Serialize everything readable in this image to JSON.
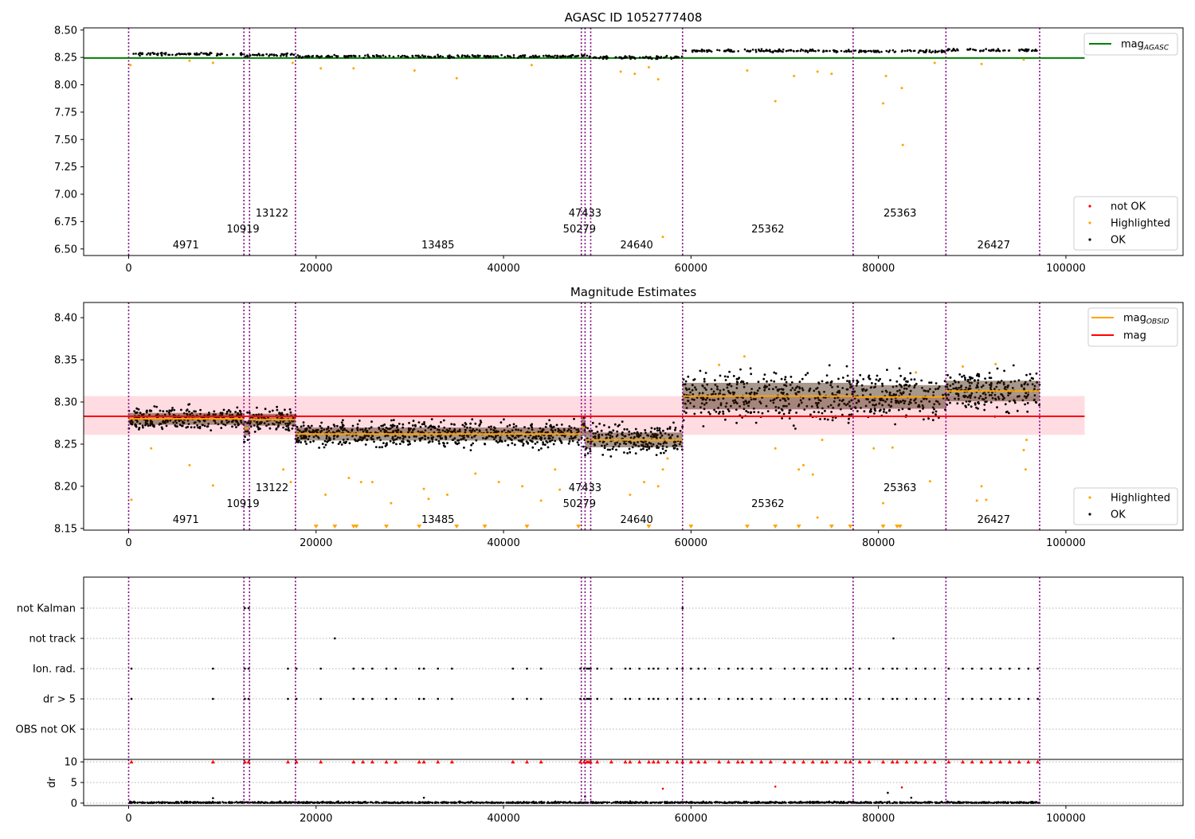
{
  "chart_data": [
    {
      "type": "scatter",
      "title": "AGASC ID 1052777408",
      "xlim": [
        -4800,
        112500
      ],
      "ylim": [
        6.44,
        8.52
      ],
      "x_ticks": [
        0,
        20000,
        40000,
        60000,
        80000,
        100000
      ],
      "y_ticks": [
        6.5,
        6.75,
        7.0,
        7.25,
        7.5,
        7.75,
        8.0,
        8.25,
        8.5
      ],
      "y_tick_labels": [
        "6.50",
        "6.75",
        "7.00",
        "7.25",
        "7.50",
        "7.75",
        "8.00",
        "8.25",
        "8.50"
      ],
      "grid": false,
      "legend_top": {
        "position": "top-right",
        "entries": [
          {
            "label": "mag",
            "sub": "AGASC",
            "color": "#008000",
            "kind": "line"
          }
        ]
      },
      "legend_bottom": {
        "position": "bottom-right",
        "entries": [
          {
            "label": "not OK",
            "color": "#ff0000",
            "kind": "dot"
          },
          {
            "label": "Highlighted",
            "color": "#ffa500",
            "kind": "dot"
          },
          {
            "label": "OK",
            "color": "#000000",
            "kind": "dot"
          }
        ]
      },
      "reference_line": {
        "y": 8.245,
        "x_from": -4800,
        "x_to": 102000,
        "color": "#008000"
      },
      "segments": [
        {
          "x_from": 0,
          "x_to": 12300,
          "mag": 8.28
        },
        {
          "x_from": 12300,
          "x_to": 12900,
          "mag": 8.27
        },
        {
          "x_from": 12900,
          "x_to": 17800,
          "mag": 8.275
        },
        {
          "x_from": 17800,
          "x_to": 48300,
          "mag": 8.26
        },
        {
          "x_from": 48300,
          "x_to": 48700,
          "mag": 8.265
        },
        {
          "x_from": 48700,
          "x_to": 49300,
          "mag": 8.255
        },
        {
          "x_from": 49300,
          "x_to": 59100,
          "mag": 8.25
        },
        {
          "x_from": 59100,
          "x_to": 77300,
          "mag": 8.31
        },
        {
          "x_from": 77300,
          "x_to": 87200,
          "mag": 8.305
        },
        {
          "x_from": 87200,
          "x_to": 97200,
          "mag": 8.315
        }
      ],
      "highlighted_points": [
        {
          "x": 200,
          "y": 8.18
        },
        {
          "x": 6500,
          "y": 8.22
        },
        {
          "x": 9000,
          "y": 8.2
        },
        {
          "x": 17500,
          "y": 8.2
        },
        {
          "x": 20500,
          "y": 8.15
        },
        {
          "x": 24000,
          "y": 8.15
        },
        {
          "x": 30500,
          "y": 8.13
        },
        {
          "x": 35000,
          "y": 8.06
        },
        {
          "x": 43000,
          "y": 8.18
        },
        {
          "x": 52500,
          "y": 8.12
        },
        {
          "x": 54000,
          "y": 8.1
        },
        {
          "x": 55500,
          "y": 8.16
        },
        {
          "x": 56500,
          "y": 8.05
        },
        {
          "x": 57000,
          "y": 6.61
        },
        {
          "x": 66000,
          "y": 8.13
        },
        {
          "x": 69000,
          "y": 7.85
        },
        {
          "x": 71000,
          "y": 8.08
        },
        {
          "x": 73500,
          "y": 8.12
        },
        {
          "x": 75000,
          "y": 8.1
        },
        {
          "x": 80500,
          "y": 7.83
        },
        {
          "x": 80800,
          "y": 8.08
        },
        {
          "x": 82500,
          "y": 7.97
        },
        {
          "x": 82600,
          "y": 7.45
        },
        {
          "x": 86000,
          "y": 8.2
        },
        {
          "x": 91000,
          "y": 8.19
        },
        {
          "x": 95500,
          "y": 8.23
        }
      ],
      "obsid_boundaries": [
        0,
        12300,
        12900,
        17800,
        48300,
        48700,
        49300,
        59100,
        77300,
        87200,
        97200
      ],
      "obsid_labels": [
        {
          "text": "4971",
          "x": 6100,
          "row": 3
        },
        {
          "text": "10919",
          "x": 12200,
          "row": 2
        },
        {
          "text": "13122",
          "x": 15300,
          "row": 1
        },
        {
          "text": "13485",
          "x": 33000,
          "row": 3
        },
        {
          "text": "47433",
          "x": 48700,
          "row": 1
        },
        {
          "text": "50279",
          "x": 48100,
          "row": 2
        },
        {
          "text": "24640",
          "x": 54200,
          "row": 3
        },
        {
          "text": "25362",
          "x": 68200,
          "row": 2
        },
        {
          "text": "25363",
          "x": 82300,
          "row": 1
        },
        {
          "text": "26427",
          "x": 92300,
          "row": 3
        }
      ]
    },
    {
      "type": "scatter",
      "title": "Magnitude Estimates",
      "xlim": [
        -4800,
        112500
      ],
      "ylim": [
        8.148,
        8.418
      ],
      "x_ticks": [
        0,
        20000,
        40000,
        60000,
        80000,
        100000
      ],
      "y_ticks": [
        8.15,
        8.2,
        8.25,
        8.3,
        8.35,
        8.4
      ],
      "y_tick_labels": [
        "8.15",
        "8.20",
        "8.25",
        "8.30",
        "8.35",
        "8.40"
      ],
      "grid": false,
      "legend_top": {
        "position": "top-right",
        "entries": [
          {
            "label": "mag",
            "sub": "OBSID",
            "color": "#ffa500",
            "kind": "line"
          },
          {
            "label": "mag",
            "sub": "",
            "color": "#ff0000",
            "kind": "line"
          }
        ]
      },
      "legend_bottom": {
        "position": "bottom-right",
        "entries": [
          {
            "label": "Highlighted",
            "color": "#ffa500",
            "kind": "dot"
          },
          {
            "label": "OK",
            "color": "#000000",
            "kind": "dot"
          }
        ]
      },
      "mean_mag": 8.283,
      "mean_band": [
        8.261,
        8.307
      ],
      "segments": [
        {
          "x_from": 0,
          "x_to": 12300,
          "mag": 8.28,
          "spread": 0.02
        },
        {
          "x_from": 12300,
          "x_to": 12900,
          "mag": 8.269,
          "spread": 0.025
        },
        {
          "x_from": 12900,
          "x_to": 17800,
          "mag": 8.279,
          "spread": 0.02
        },
        {
          "x_from": 17800,
          "x_to": 48300,
          "mag": 8.262,
          "spread": 0.022
        },
        {
          "x_from": 48300,
          "x_to": 48700,
          "mag": 8.27,
          "spread": 0.03
        },
        {
          "x_from": 48700,
          "x_to": 49300,
          "mag": 8.255,
          "spread": 0.03
        },
        {
          "x_from": 49300,
          "x_to": 59100,
          "mag": 8.255,
          "spread": 0.025
        },
        {
          "x_from": 59100,
          "x_to": 77300,
          "mag": 8.307,
          "spread": 0.045
        },
        {
          "x_from": 77300,
          "x_to": 87200,
          "mag": 8.306,
          "spread": 0.04
        },
        {
          "x_from": 87200,
          "x_to": 97200,
          "mag": 8.313,
          "spread": 0.035
        }
      ],
      "highlighted_points": [
        {
          "x": 300,
          "y": 8.184
        },
        {
          "x": 2400,
          "y": 8.245
        },
        {
          "x": 6500,
          "y": 8.225
        },
        {
          "x": 9000,
          "y": 8.201
        },
        {
          "x": 16500,
          "y": 8.22
        },
        {
          "x": 17300,
          "y": 8.205
        },
        {
          "x": 21000,
          "y": 8.19
        },
        {
          "x": 23500,
          "y": 8.21
        },
        {
          "x": 24800,
          "y": 8.205
        },
        {
          "x": 26000,
          "y": 8.205
        },
        {
          "x": 28000,
          "y": 8.18
        },
        {
          "x": 31500,
          "y": 8.197
        },
        {
          "x": 32000,
          "y": 8.185
        },
        {
          "x": 34000,
          "y": 8.19
        },
        {
          "x": 37000,
          "y": 8.215
        },
        {
          "x": 39500,
          "y": 8.205
        },
        {
          "x": 42000,
          "y": 8.2
        },
        {
          "x": 44000,
          "y": 8.183
        },
        {
          "x": 45500,
          "y": 8.22
        },
        {
          "x": 46000,
          "y": 8.196
        },
        {
          "x": 53500,
          "y": 8.19
        },
        {
          "x": 55000,
          "y": 8.205
        },
        {
          "x": 56500,
          "y": 8.2
        },
        {
          "x": 57000,
          "y": 8.22
        },
        {
          "x": 57500,
          "y": 8.233
        },
        {
          "x": 63000,
          "y": 8.344
        },
        {
          "x": 65700,
          "y": 8.354
        },
        {
          "x": 69000,
          "y": 8.245
        },
        {
          "x": 71500,
          "y": 8.22
        },
        {
          "x": 72000,
          "y": 8.225
        },
        {
          "x": 73000,
          "y": 8.214
        },
        {
          "x": 73500,
          "y": 8.163
        },
        {
          "x": 74000,
          "y": 8.255
        },
        {
          "x": 79500,
          "y": 8.245
        },
        {
          "x": 80500,
          "y": 8.18
        },
        {
          "x": 81500,
          "y": 8.246
        },
        {
          "x": 84000,
          "y": 8.335
        },
        {
          "x": 85500,
          "y": 8.206
        },
        {
          "x": 89000,
          "y": 8.342
        },
        {
          "x": 90500,
          "y": 8.183
        },
        {
          "x": 91000,
          "y": 8.2
        },
        {
          "x": 91500,
          "y": 8.184
        },
        {
          "x": 92500,
          "y": 8.345
        },
        {
          "x": 95500,
          "y": 8.243
        },
        {
          "x": 95700,
          "y": 8.22
        },
        {
          "x": 95800,
          "y": 8.255
        }
      ],
      "clipped_markers": [
        20000,
        22000,
        24000,
        24300,
        27500,
        31000,
        35000,
        38000,
        42500,
        48000,
        55500,
        60000,
        66000,
        69000,
        71500,
        75000,
        77000,
        80500,
        82000,
        82300
      ],
      "obsid_boundaries": [
        0,
        12300,
        12900,
        17800,
        48300,
        48700,
        49300,
        59100,
        77300,
        87200,
        97200
      ],
      "obsid_labels": [
        {
          "text": "4971",
          "x": 6100,
          "row": 3
        },
        {
          "text": "10919",
          "x": 12200,
          "row": 2
        },
        {
          "text": "13122",
          "x": 15300,
          "row": 1
        },
        {
          "text": "13485",
          "x": 33000,
          "row": 3
        },
        {
          "text": "47433",
          "x": 48700,
          "row": 1
        },
        {
          "text": "50279",
          "x": 48100,
          "row": 2
        },
        {
          "text": "24640",
          "x": 54200,
          "row": 3
        },
        {
          "text": "25362",
          "x": 68200,
          "row": 2
        },
        {
          "text": "25363",
          "x": 82300,
          "row": 1
        },
        {
          "text": "26427",
          "x": 92300,
          "row": 3
        }
      ]
    },
    {
      "type": "scatter",
      "title": "",
      "xlim": [
        -4800,
        112500
      ],
      "categories": [
        "not Kalman",
        "not track",
        "Ion. rad.",
        "dr > 5",
        "OBS not OK"
      ],
      "grid": "dotted horizontal",
      "flags": {
        "not Kalman": [
          12400,
          12800,
          59100
        ],
        "not track": [
          22000,
          81600
        ],
        "Ion. rad.": [
          300,
          9000,
          12400,
          12800,
          17000,
          17900,
          20500,
          24000,
          25000,
          26000,
          27500,
          28500,
          31000,
          31500,
          33000,
          34500,
          41000,
          42500,
          44000,
          48200,
          48600,
          48900,
          49100,
          49300,
          50000,
          51500,
          53000,
          53500,
          54500,
          55500,
          56000,
          56500,
          57500,
          58500,
          59100,
          60000,
          60800,
          61500,
          63000,
          64000,
          65000,
          65500,
          66500,
          67500,
          68500,
          70000,
          71000,
          72000,
          73000,
          74000,
          74500,
          75500,
          76500,
          77000,
          78000,
          79000,
          80500,
          81500,
          82000,
          83000,
          84000,
          85000,
          86000,
          87500,
          89000,
          90000,
          91000,
          92000,
          93000,
          94000,
          95000,
          96000,
          97000
        ],
        "dr > 5": [
          300,
          9000,
          12400,
          12800,
          17000,
          17900,
          20500,
          24000,
          25000,
          26000,
          27500,
          28500,
          31000,
          31500,
          33000,
          34500,
          41000,
          42500,
          44000,
          48200,
          48600,
          48900,
          49100,
          49300,
          50000,
          51500,
          53000,
          53500,
          54500,
          55500,
          56000,
          56500,
          57500,
          58500,
          59100,
          60000,
          60800,
          61500,
          63000,
          64000,
          65000,
          65500,
          66500,
          67500,
          68500,
          70000,
          71000,
          72000,
          73000,
          74000,
          74500,
          75500,
          76500,
          77000,
          78000,
          79000,
          80500,
          81500,
          82000,
          83000,
          84000,
          85000,
          86000,
          87500,
          89000,
          90000,
          91000,
          92000,
          93000,
          94000,
          95000,
          96000,
          97000
        ],
        "OBS not OK": []
      },
      "obsid_boundaries": [
        0,
        12300,
        12900,
        17800,
        48300,
        48700,
        49300,
        59100,
        77300,
        87200,
        97200
      ]
    },
    {
      "type": "scatter",
      "title": "",
      "ylabel": "dr",
      "xlim": [
        -4800,
        112500
      ],
      "ylim": [
        -0.6,
        10.6
      ],
      "x_ticks": [
        0,
        20000,
        40000,
        60000,
        80000,
        100000
      ],
      "y_ticks": [
        0,
        5,
        10
      ],
      "y_tick_labels": [
        "0",
        "5",
        "10"
      ],
      "grid": "dotted horizontal",
      "clipped_red": [
        300,
        9000,
        12400,
        12800,
        17000,
        17900,
        20500,
        24000,
        25000,
        26000,
        27500,
        28500,
        31000,
        31500,
        33000,
        34500,
        41000,
        42500,
        44000,
        48200,
        48600,
        48900,
        49100,
        49300,
        50000,
        51500,
        53000,
        53500,
        54500,
        55500,
        56000,
        56500,
        57500,
        58500,
        59100,
        60000,
        60800,
        61500,
        63000,
        64000,
        65000,
        65500,
        66500,
        67500,
        68500,
        70000,
        71000,
        72000,
        73000,
        74000,
        74500,
        75500,
        76500,
        77000,
        78000,
        79000,
        80500,
        81500,
        82000,
        83000,
        84000,
        85000,
        86000,
        87500,
        89000,
        90000,
        91000,
        92000,
        93000,
        94000,
        95000,
        96000,
        97000
      ],
      "outliers": [
        {
          "x": 9000,
          "y": 1.2
        },
        {
          "x": 31500,
          "y": 1.3
        },
        {
          "x": 48700,
          "y": 1.6
        },
        {
          "x": 57000,
          "y": 3.5
        },
        {
          "x": 69000,
          "y": 4.0
        },
        {
          "x": 81000,
          "y": 2.5
        },
        {
          "x": 82500,
          "y": 3.8
        },
        {
          "x": 83500,
          "y": 1.3
        }
      ],
      "obsid_boundaries": [
        0,
        12300,
        12900,
        17800,
        48300,
        48700,
        49300,
        59100,
        77300,
        87200,
        97200
      ]
    }
  ]
}
